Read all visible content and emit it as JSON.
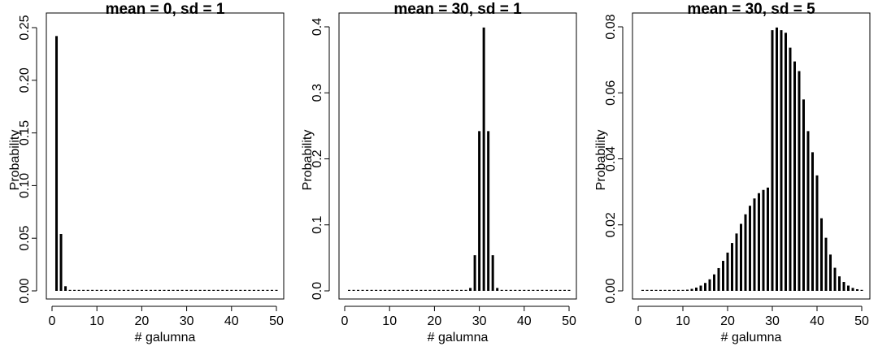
{
  "chart_data": [
    {
      "type": "bar",
      "title": "mean = 0, sd = 1",
      "xlabel": "# galumna",
      "ylabel": "Probability",
      "xlim": [
        0,
        50
      ],
      "ylim": [
        0,
        0.25
      ],
      "xticks": [
        "0",
        "10",
        "20",
        "30",
        "40",
        "50"
      ],
      "yticks": [
        "0.00",
        "0.05",
        "0.10",
        "0.15",
        "0.20",
        "0.25"
      ],
      "x_start": 1,
      "values": [
        0.242,
        0.054,
        0.0044,
        0.00013,
        0,
        0,
        0,
        0,
        0,
        0,
        0,
        0,
        0,
        0,
        0,
        0,
        0,
        0,
        0,
        0,
        0,
        0,
        0,
        0,
        0,
        0,
        0,
        0,
        0,
        0,
        0,
        0,
        0,
        0,
        0,
        0,
        0,
        0,
        0,
        0,
        0,
        0,
        0,
        0,
        0,
        0,
        0,
        0,
        0,
        0
      ]
    },
    {
      "type": "bar",
      "title": "mean = 30, sd = 1",
      "xlabel": "# galumna",
      "ylabel": "Probability",
      "xlim": [
        0,
        50
      ],
      "ylim": [
        0,
        0.4
      ],
      "xticks": [
        "0",
        "10",
        "20",
        "30",
        "40",
        "50"
      ],
      "yticks": [
        "0.0",
        "0.1",
        "0.2",
        "0.3",
        "0.4"
      ],
      "x_start": 1,
      "values": [
        0,
        0,
        0,
        0,
        0,
        0,
        0,
        0,
        0,
        0,
        0,
        0,
        0,
        0,
        0,
        0,
        0,
        0,
        0,
        0,
        0,
        0,
        0,
        0,
        0,
        0,
        0.00013,
        0.0044,
        0.054,
        0.242,
        0.399,
        0.242,
        0.054,
        0.0044,
        0.00013,
        0,
        0,
        0,
        0,
        0,
        0,
        0,
        0,
        0,
        0,
        0,
        0,
        0,
        0,
        0
      ]
    },
    {
      "type": "bar",
      "title": "mean = 30, sd = 5",
      "xlabel": "# galumna",
      "ylabel": "Probability",
      "xlim": [
        0,
        50
      ],
      "ylim": [
        0,
        0.08
      ],
      "xticks": [
        "0",
        "10",
        "20",
        "30",
        "40",
        "50"
      ],
      "yticks": [
        "0.00",
        "0.02",
        "0.04",
        "0.06",
        "0.08"
      ],
      "x_start": 1,
      "values": [
        1e-07,
        3e-07,
        8e-07,
        2e-06,
        5e-06,
        1.2e-05,
        2.6e-05,
        5.5e-05,
        0.00011,
        0.0002,
        0.00036,
        0.00061,
        0.001,
        0.0016,
        0.0024,
        0.0035,
        0.005,
        0.0069,
        0.0091,
        0.0116,
        0.0145,
        0.0174,
        0.0203,
        0.0232,
        0.0258,
        0.028,
        0.0296,
        0.0306,
        0.0313,
        0.079,
        0.0798,
        0.079,
        0.0782,
        0.0737,
        0.0695,
        0.0666,
        0.058,
        0.0484,
        0.042,
        0.035,
        0.022,
        0.0161,
        0.011,
        0.007,
        0.0044,
        0.0027,
        0.0016,
        0.0009,
        0.0005,
        0.0003
      ]
    }
  ]
}
